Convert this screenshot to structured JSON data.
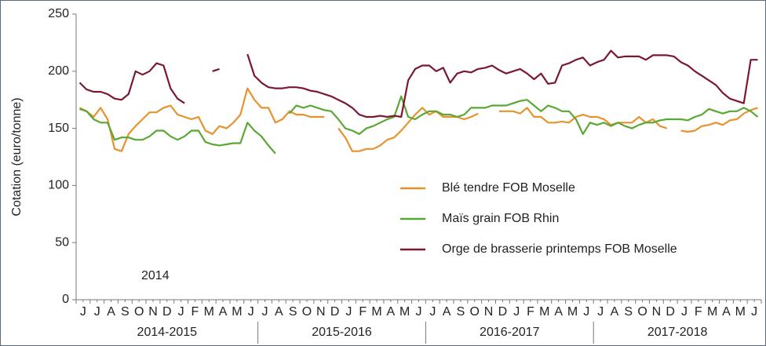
{
  "chart_data": {
    "type": "line",
    "y_axis_label": "Cotation (euro/tonne)",
    "annotation": "2014",
    "ylim": [
      0,
      250
    ],
    "yticks": [
      0,
      50,
      100,
      150,
      200,
      250
    ],
    "legend": "center-right",
    "categories": [
      "J",
      null,
      "J",
      null,
      "A",
      null,
      "S",
      null,
      "O",
      null,
      "N",
      null,
      "D",
      null,
      "J",
      null,
      "F",
      null,
      "M",
      null,
      "A",
      null,
      "M",
      null,
      "J",
      null,
      "J",
      null,
      "A",
      null,
      "S",
      null,
      "O",
      null,
      "N",
      null,
      "D",
      null,
      "J",
      null,
      "F",
      null,
      "M",
      null,
      "A",
      null,
      "M",
      null,
      "J",
      null,
      "J",
      null,
      "A",
      null,
      "S",
      null,
      "O",
      null,
      "N",
      null,
      "D",
      null,
      "J",
      null,
      "F",
      null,
      "M",
      null,
      "A",
      null,
      "M",
      null,
      "J",
      null,
      "J",
      null,
      "A",
      null,
      "S",
      null,
      "O",
      null,
      "N",
      null,
      "D",
      null,
      "J",
      null,
      "F",
      null,
      "M",
      null,
      "A",
      null,
      "M",
      null,
      "J",
      null
    ],
    "groups": [
      "2014-2015",
      "2015-2016",
      "2016-2017",
      "2017-2018"
    ],
    "series": [
      {
        "name": "Blé tendre FOB Moselle",
        "color": "#e8922e",
        "values": [
          168,
          165,
          160,
          168,
          158,
          132,
          130,
          145,
          152,
          158,
          164,
          164,
          168,
          170,
          162,
          160,
          158,
          160,
          148,
          145,
          152,
          150,
          155,
          162,
          185,
          175,
          168,
          168,
          155,
          158,
          165,
          162,
          162,
          160,
          160,
          160,
          null,
          150,
          142,
          130,
          130,
          132,
          132,
          135,
          140,
          142,
          148,
          155,
          162,
          168,
          162,
          165,
          160,
          160,
          160,
          158,
          160,
          163,
          null,
          null,
          165,
          165,
          165,
          163,
          168,
          160,
          160,
          155,
          155,
          156,
          155,
          160,
          162,
          160,
          160,
          158,
          153,
          155,
          155,
          155,
          160,
          155,
          158,
          152,
          150,
          null,
          148,
          147,
          148,
          152,
          153,
          155,
          153,
          157,
          158,
          163,
          166,
          168
        ]
      },
      {
        "name": "Maïs grain FOB Rhin",
        "color": "#5aa834",
        "values": [
          167,
          165,
          158,
          155,
          155,
          140,
          142,
          142,
          140,
          140,
          143,
          148,
          148,
          143,
          140,
          143,
          148,
          148,
          138,
          136,
          135,
          136,
          137,
          137,
          155,
          148,
          143,
          135,
          128,
          null,
          163,
          170,
          168,
          170,
          168,
          166,
          165,
          158,
          150,
          148,
          145,
          150,
          152,
          155,
          158,
          160,
          178,
          160,
          158,
          162,
          165,
          165,
          162,
          162,
          160,
          162,
          168,
          168,
          168,
          170,
          170,
          170,
          172,
          174,
          175,
          170,
          165,
          170,
          168,
          165,
          165,
          158,
          145,
          155,
          153,
          155,
          152,
          155,
          152,
          150,
          153,
          155,
          155,
          157,
          158,
          158,
          158,
          157,
          160,
          162,
          167,
          165,
          163,
          165,
          165,
          168,
          165,
          160
        ]
      },
      {
        "name": "Orge de brasserie printemps FOB Moselle",
        "color": "#7b1831",
        "values": [
          190,
          184,
          182,
          182,
          180,
          176,
          175,
          180,
          200,
          197,
          200,
          207,
          205,
          185,
          176,
          172,
          null,
          null,
          null,
          200,
          202,
          null,
          null,
          null,
          215,
          196,
          190,
          186,
          185,
          185,
          186,
          186,
          185,
          183,
          182,
          180,
          178,
          175,
          172,
          168,
          162,
          160,
          160,
          161,
          160,
          161,
          160,
          192,
          202,
          205,
          205,
          200,
          203,
          190,
          198,
          200,
          199,
          202,
          203,
          205,
          201,
          198,
          200,
          202,
          198,
          193,
          198,
          189,
          190,
          205,
          207,
          210,
          212,
          205,
          208,
          210,
          218,
          212,
          213,
          213,
          213,
          210,
          214,
          214,
          214,
          213,
          208,
          205,
          200,
          196,
          192,
          188,
          181,
          176,
          174,
          172,
          210,
          210
        ]
      }
    ]
  }
}
